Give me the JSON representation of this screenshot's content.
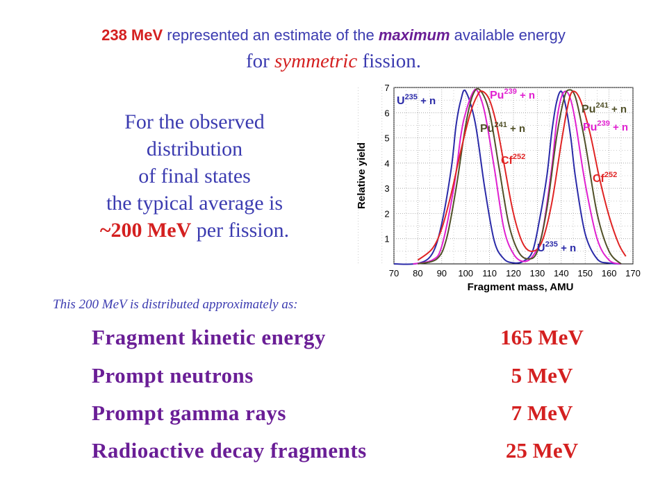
{
  "header": {
    "line1_value": "238 MeV",
    "line1_mid": " represented an estimate of the ",
    "line1_emph": "maximum",
    "line1_end": " available energy",
    "line2_start": "for ",
    "line2_emph": "symmetric",
    "line2_end": " fission."
  },
  "observed": {
    "l1": "For the observed",
    "l2": "distribution",
    "l3": "of final states",
    "l4": "the typical average is",
    "l5_value": "~200 MeV",
    "l5_rest": " per fission."
  },
  "distribution": {
    "title": "This 200 MeV is distributed approximately as:",
    "rows": [
      {
        "label": "Fragment kinetic energy",
        "value": "165 MeV"
      },
      {
        "label": "Prompt neutrons",
        "value": "5 MeV"
      },
      {
        "label": "Prompt gamma rays",
        "value": "7 MeV"
      },
      {
        "label": "Radioactive decay fragments",
        "value": "25 MeV"
      }
    ]
  },
  "chart_data": {
    "type": "line",
    "xlabel": "Fragment mass, AMU",
    "ylabel": "Relative yield",
    "xlim": [
      70,
      170
    ],
    "ylim": [
      0,
      7
    ],
    "xticks": [
      70,
      80,
      90,
      100,
      110,
      120,
      130,
      140,
      150,
      160,
      170
    ],
    "yticks": [
      1,
      2,
      3,
      4,
      5,
      6,
      7
    ],
    "grid": true,
    "series": [
      {
        "name": "U235 + n",
        "color": "#2a2aa8",
        "x": [
          70,
          80,
          86,
          90,
          94,
          96,
          98,
          100,
          104,
          108,
          112,
          116,
          120,
          124,
          128,
          131,
          134,
          136,
          138,
          140,
          142,
          144,
          146,
          150,
          155,
          160,
          165
        ],
        "y": [
          0,
          0.02,
          0.4,
          1.6,
          3.8,
          5.5,
          6.5,
          6.85,
          5.6,
          3.0,
          0.9,
          0.2,
          0.04,
          0.1,
          0.5,
          1.8,
          3.5,
          5.2,
          6.4,
          6.85,
          6.2,
          5.0,
          3.4,
          1.2,
          0.2,
          0.03,
          0
        ]
      },
      {
        "name": "Pu239 + n",
        "color": "#e020d0",
        "x": [
          78,
          86,
          90,
          95,
          98,
          100,
          103,
          105,
          108,
          112,
          116,
          120,
          124,
          128,
          132,
          136,
          138,
          140,
          142,
          144,
          146,
          150,
          155,
          160,
          165
        ],
        "y": [
          0,
          0.15,
          0.7,
          3.0,
          5.1,
          6.0,
          6.8,
          6.85,
          6.0,
          3.8,
          1.4,
          0.4,
          0.1,
          0.3,
          1.2,
          3.8,
          5.6,
          6.6,
          6.85,
          6.5,
          5.6,
          3.2,
          1.0,
          0.15,
          0
        ]
      },
      {
        "name": "Pu241 + n",
        "color": "#505028",
        "x": [
          80,
          88,
          92,
          96,
          100,
          103,
          106,
          110,
          114,
          118,
          122,
          126,
          130,
          134,
          138,
          141,
          143,
          146,
          150,
          155,
          160,
          165
        ],
        "y": [
          0,
          0.2,
          1.0,
          3.0,
          5.5,
          6.7,
          6.9,
          6.0,
          3.8,
          1.6,
          0.5,
          0.2,
          0.5,
          2.2,
          5.0,
          6.5,
          6.9,
          6.6,
          4.8,
          2.0,
          0.5,
          0
        ]
      },
      {
        "name": "Cf252",
        "color": "#e02424",
        "x": [
          80,
          86,
          90,
          94,
          98,
          102,
          105,
          107,
          110,
          113,
          116,
          120,
          124,
          128,
          132,
          136,
          140,
          143,
          145,
          148,
          152,
          156,
          160,
          164,
          167
        ],
        "y": [
          0.15,
          0.6,
          1.4,
          2.8,
          4.5,
          6.0,
          6.7,
          6.85,
          6.5,
          5.5,
          4.0,
          2.0,
          0.8,
          0.5,
          0.9,
          2.4,
          4.8,
          6.4,
          6.85,
          6.5,
          5.2,
          3.4,
          1.9,
          0.8,
          0.3
        ]
      }
    ],
    "annotations": [
      {
        "base": "U",
        "sup": "235",
        "rest": " + n",
        "color": "#2a2aa8"
      },
      {
        "base": "Pu",
        "sup": "239",
        "rest": " + n",
        "color": "#e020d0"
      },
      {
        "base": "Pu",
        "sup": "241",
        "rest": " + n",
        "color": "#505028"
      },
      {
        "base": "Cf",
        "sup": "252",
        "rest": "",
        "color": "#e02424"
      },
      {
        "base": "Pu",
        "sup": "241",
        "rest": " + n",
        "color": "#505028"
      },
      {
        "base": "Pu",
        "sup": "239",
        "rest": " + n",
        "color": "#e020d0"
      },
      {
        "base": "Cf",
        "sup": "252",
        "rest": "",
        "color": "#e02424"
      },
      {
        "base": "U",
        "sup": "235",
        "rest": " + n",
        "color": "#2a2aa8"
      }
    ]
  }
}
